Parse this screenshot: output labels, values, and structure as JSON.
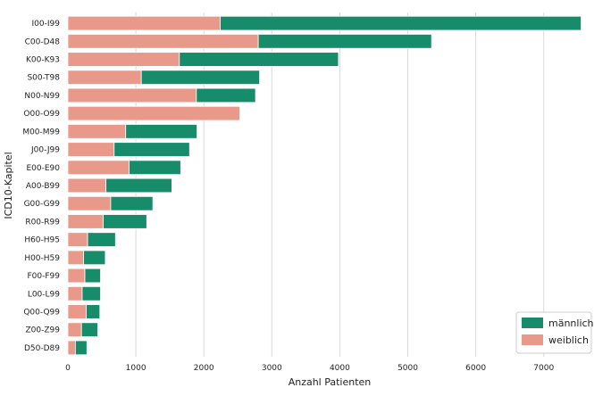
{
  "chart_data": {
    "type": "bar",
    "orientation": "horizontal",
    "stacked": true,
    "categories": [
      "I00-I99",
      "C00-D48",
      "K00-K93",
      "S00-T98",
      "N00-N99",
      "O00-O99",
      "M00-M99",
      "J00-J99",
      "E00-E90",
      "A00-B99",
      "G00-G99",
      "R00-R99",
      "H60-H95",
      "H00-H59",
      "F00-F99",
      "L00-L99",
      "Q00-Q99",
      "Z00-Z99",
      "D50-D89"
    ],
    "series": [
      {
        "name": "weiblich",
        "color": "#E8998A",
        "values": [
          2240,
          2800,
          1640,
          1080,
          1890,
          2530,
          850,
          680,
          900,
          560,
          630,
          520,
          290,
          230,
          250,
          210,
          270,
          200,
          110
        ]
      },
      {
        "name": "männlich",
        "color": "#178C6A",
        "values": [
          5310,
          2550,
          2340,
          1740,
          870,
          0,
          1050,
          1110,
          760,
          970,
          620,
          640,
          410,
          320,
          230,
          270,
          200,
          240,
          170
        ]
      }
    ],
    "xlabel": "Anzahl Patienten",
    "ylabel": "ICD10-Kapitel",
    "xlim": [
      0,
      7700
    ],
    "xticks": [
      0,
      1000,
      2000,
      3000,
      4000,
      5000,
      6000,
      7000
    ],
    "grid": "vertical",
    "legend_position": "lower-right",
    "legend_order": [
      "männlich",
      "weiblich"
    ]
  }
}
